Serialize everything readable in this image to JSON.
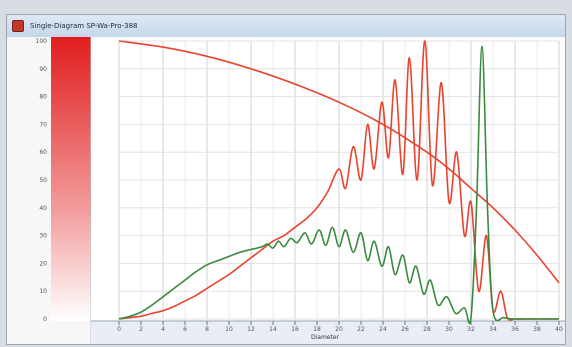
{
  "window": {
    "title": "Single-Diagram SP-Wa-Pro-388",
    "icon": "chart-window-icon"
  },
  "colors": {
    "red": "#e8432e",
    "green": "#3a8a3e",
    "grid": "#dcdcdc",
    "frame": "#bfc3c8"
  },
  "chart_data": {
    "type": "line",
    "xlabel": "Diameter",
    "ylabel": "",
    "xlim": [
      0,
      40
    ],
    "ylim": [
      0,
      100
    ],
    "grid": true,
    "x_ticks": [
      "0",
      "2",
      "4",
      "6",
      "8",
      "10",
      "12",
      "14",
      "16",
      "18",
      "20",
      "22",
      "24",
      "26",
      "28",
      "30",
      "32",
      "34",
      "36",
      "38",
      "40"
    ],
    "y_ticks": [
      "0",
      "10",
      "20",
      "30",
      "40",
      "50",
      "60",
      "70",
      "80",
      "90",
      "100"
    ],
    "series": [
      {
        "name": "",
        "color": "#e8432e",
        "x": [
          0,
          4,
          8,
          12,
          16,
          20,
          24,
          28,
          30,
          32,
          34,
          36,
          38,
          40
        ],
        "y": [
          100,
          97.8,
          94.5,
          90,
          84.5,
          78,
          70,
          60,
          54,
          47,
          40,
          32,
          23,
          13
        ]
      },
      {
        "name": "",
        "color": "#e8432e",
        "x": [
          0,
          1,
          2,
          3,
          4,
          5,
          6,
          7,
          8,
          9,
          10,
          11,
          12,
          13,
          14,
          15,
          16,
          17,
          18,
          19,
          20,
          20.6,
          21.3,
          22,
          22.6,
          23.2,
          23.9,
          24.5,
          25.1,
          25.8,
          26.4,
          27.1,
          27.8,
          28.5,
          29.3,
          30,
          30.7,
          31.4,
          32,
          32.7,
          33.4,
          34,
          34.7,
          35.3,
          36,
          36.7,
          37.3,
          38,
          39,
          40
        ],
        "y": [
          0,
          0.5,
          1,
          2,
          3,
          4.5,
          6.5,
          8.5,
          11,
          13.5,
          16,
          19,
          22,
          25,
          28,
          30,
          33,
          36,
          40,
          46,
          54,
          47,
          62,
          50,
          70,
          54,
          78,
          58,
          86,
          52,
          94,
          50,
          100,
          48,
          85,
          42,
          60,
          30,
          42,
          10,
          30,
          3,
          10,
          0.5,
          0,
          0,
          0,
          0,
          0,
          0
        ]
      },
      {
        "name": "",
        "color": "#3a8a3e",
        "x": [
          0,
          1,
          2,
          3,
          4,
          5,
          6,
          7,
          8,
          9,
          10,
          11,
          12,
          13,
          13.5,
          14,
          14.5,
          15,
          15.6,
          16.2,
          16.9,
          17.5,
          18.2,
          18.8,
          19.4,
          20,
          20.6,
          21.3,
          22,
          22.6,
          23.2,
          23.9,
          24.5,
          25.1,
          25.8,
          26.4,
          27,
          27.7,
          28.3,
          29,
          29.8,
          30.6,
          31.4,
          32,
          32.5,
          33,
          33.5,
          34,
          35,
          36,
          37,
          38,
          40
        ],
        "y": [
          0,
          1,
          2.5,
          5,
          8,
          11,
          14,
          17,
          19.5,
          21,
          22.5,
          24,
          25,
          26,
          27,
          25.5,
          28,
          26,
          29,
          27.5,
          31,
          27,
          32,
          26.5,
          33,
          26,
          32,
          24,
          31,
          21,
          28,
          19,
          26,
          16,
          23,
          13,
          19,
          9,
          14,
          5,
          8,
          2,
          4,
          0.5,
          40,
          98,
          40,
          3,
          0.5,
          0,
          0,
          0,
          0
        ]
      }
    ]
  }
}
